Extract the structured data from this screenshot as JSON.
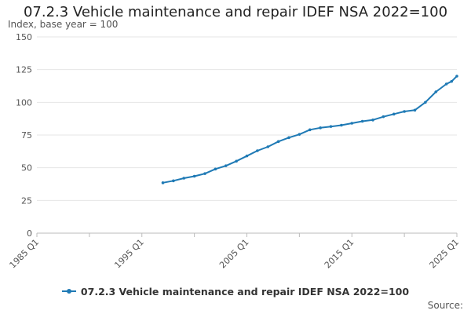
{
  "chart_data": {
    "type": "line",
    "title": "07.2.3 Vehicle maintenance and repair IDEF NSA 2022=100",
    "ylabel": "Index, base year = 100",
    "xlabel": "",
    "ylim": [
      0,
      150
    ],
    "yticks": [
      0,
      25,
      50,
      75,
      100,
      125,
      150
    ],
    "xlim": [
      1985,
      2025
    ],
    "xticks": [
      {
        "value": 1985,
        "label": "1985 Q1"
      },
      {
        "value": 1995,
        "label": "1995 Q1"
      },
      {
        "value": 2005,
        "label": "2005 Q1"
      },
      {
        "value": 2015,
        "label": "2015 Q1"
      },
      {
        "value": 2025,
        "label": "2025 Q1"
      }
    ],
    "grid": "horizontal",
    "legend": "bottom",
    "series": [
      {
        "name": "07.2.3 Vehicle maintenance and repair IDEF NSA 2022=100",
        "color": "#1f7ab5",
        "x": [
          1997,
          1998,
          1999,
          2000,
          2001,
          2002,
          2003,
          2004,
          2005,
          2006,
          2007,
          2008,
          2009,
          2010,
          2011,
          2012,
          2013,
          2014,
          2015,
          2016,
          2017,
          2018,
          2019,
          2020,
          2021,
          2022,
          2023,
          2024,
          2024.5,
          2025
        ],
        "y": [
          38.5,
          40,
          42,
          43.5,
          45.5,
          49,
          51.5,
          55,
          59,
          63,
          66,
          70,
          73,
          75.5,
          79,
          80.5,
          81.5,
          82.5,
          84,
          85.5,
          86.5,
          89,
          91,
          93,
          94,
          100,
          108,
          114,
          116,
          120
        ]
      }
    ]
  },
  "legend_label": "07.2.3 Vehicle maintenance and repair IDEF NSA 2022=100",
  "source_label": "Source:"
}
